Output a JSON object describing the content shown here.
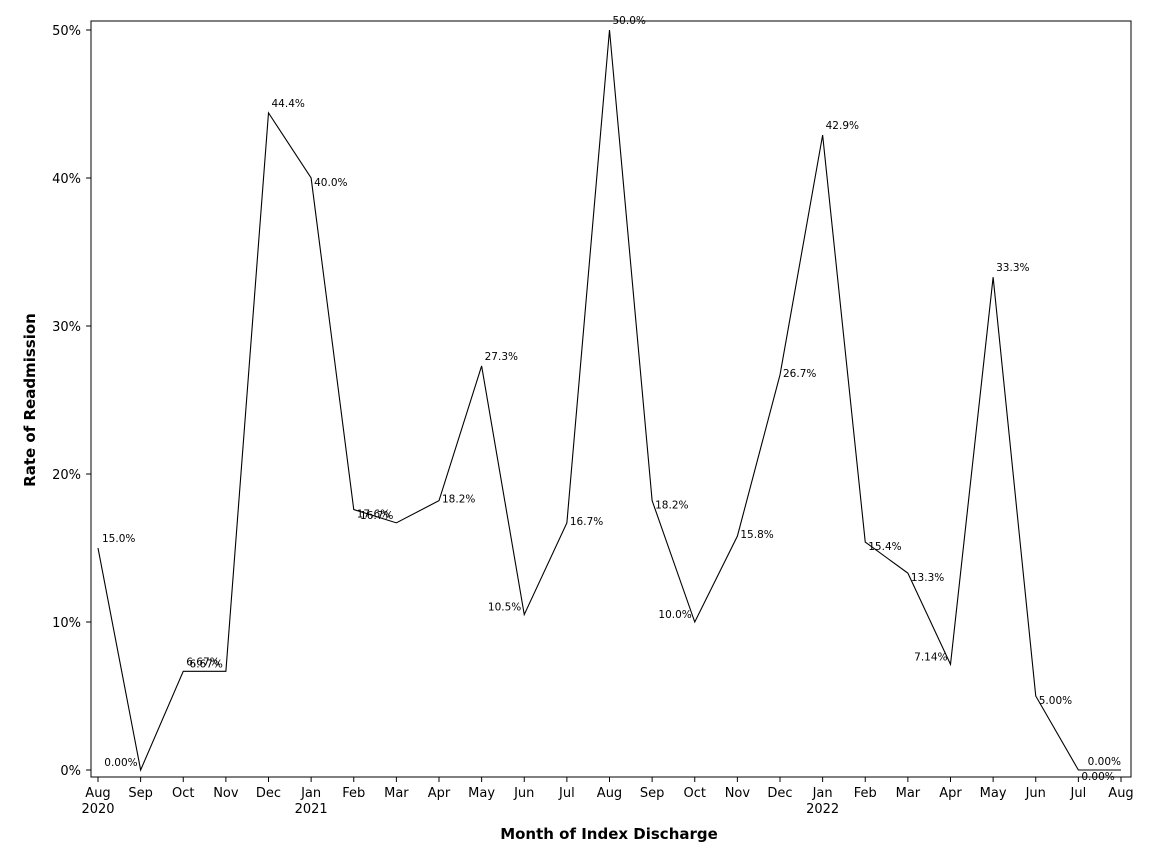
{
  "chart_data": {
    "type": "line",
    "title": "",
    "xlabel": "Month of Index Discharge",
    "ylabel": "Rate of Readmission",
    "ylim": [
      0,
      50
    ],
    "grid": false,
    "legend": "none",
    "categories": [
      "Aug",
      "Sep",
      "Oct",
      "Nov",
      "Dec",
      "Jan",
      "Feb",
      "Mar",
      "Apr",
      "May",
      "Jun",
      "Jul",
      "Aug",
      "Sep",
      "Oct",
      "Nov",
      "Dec",
      "Jan",
      "Feb",
      "Mar",
      "Apr",
      "May",
      "Jun",
      "Jul",
      "Aug"
    ],
    "year_labels": [
      {
        "index": 0,
        "label": "2020"
      },
      {
        "index": 5,
        "label": "2021"
      },
      {
        "index": 17,
        "label": "2022"
      }
    ],
    "y_ticks": [
      {
        "value": 0,
        "label": "0%"
      },
      {
        "value": 10,
        "label": "10%"
      },
      {
        "value": 20,
        "label": "20%"
      },
      {
        "value": 30,
        "label": "30%"
      },
      {
        "value": 40,
        "label": "40%"
      },
      {
        "value": 50,
        "label": "50%"
      }
    ],
    "series": [
      {
        "color": "#000000",
        "values": [
          15.0,
          0.0,
          6.67,
          6.67,
          44.4,
          40.0,
          17.6,
          16.7,
          18.2,
          27.3,
          10.5,
          16.7,
          50.0,
          18.2,
          10.0,
          15.8,
          26.7,
          42.9,
          15.4,
          13.3,
          7.14,
          33.3,
          5.0,
          0.0,
          0.0
        ],
        "labels": [
          "15.0%",
          "0.00%",
          "6.67%",
          "6.67%",
          "44.4%",
          "40.0%",
          "17.6%",
          "16.7%",
          "18.2%",
          "27.3%",
          "10.5%",
          "16.7%",
          "50.0%",
          "18.2%",
          "10.0%",
          "15.8%",
          "26.7%",
          "42.9%",
          "15.4%",
          "13.3%",
          "7.14%",
          "33.3%",
          "5.00%",
          "0.00%",
          "0.00%"
        ]
      }
    ]
  }
}
